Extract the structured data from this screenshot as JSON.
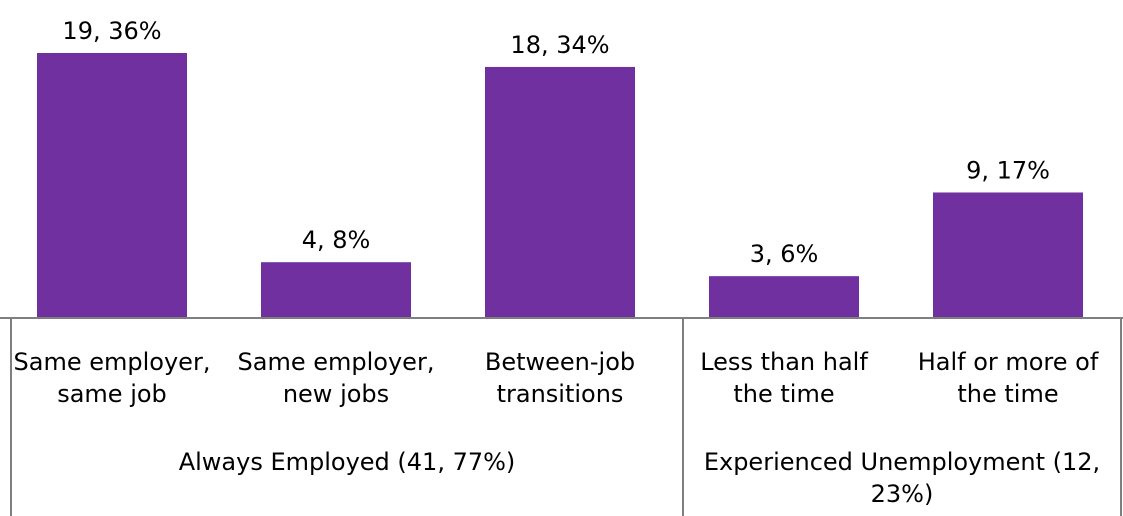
{
  "chart_data": {
    "type": "bar",
    "categories": [
      [
        "Same employer,",
        "same job"
      ],
      [
        "Same employer,",
        "new jobs"
      ],
      [
        "Between-job",
        "transitions"
      ],
      [
        "Less than half",
        "the time"
      ],
      [
        "Half or more of",
        "the time"
      ]
    ],
    "values": [
      19,
      4,
      18,
      3,
      9
    ],
    "data_labels": [
      "19, 36%",
      "4, 8%",
      "18, 34%",
      "3, 6%",
      "9, 17%"
    ],
    "groups": [
      {
        "label": [
          "Always Employed (41, 77%)"
        ],
        "categories": [
          0,
          1,
          2
        ]
      },
      {
        "label": [
          "Experienced Unemployment (12,",
          "23%)"
        ],
        "categories": [
          3,
          4
        ]
      }
    ],
    "ylim": [
      0,
      19
    ],
    "grid": false,
    "legend": "none",
    "bar_color": "#7030a0",
    "axis_color": "#7f7f7f"
  }
}
